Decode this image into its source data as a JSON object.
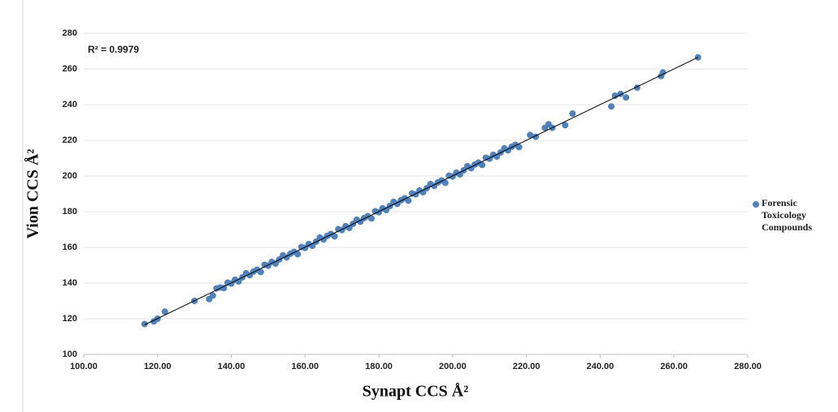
{
  "chart_data": {
    "type": "scatter",
    "annotation": "R² = 0.9979",
    "x_label": "Synapt CCS Å²",
    "y_label": "Vion CCS Å²",
    "xlim": [
      100,
      280
    ],
    "ylim": [
      100,
      280
    ],
    "xticks": [
      {
        "value": 100,
        "label": "100.00"
      },
      {
        "value": 120,
        "label": "120.00"
      },
      {
        "value": 140,
        "label": "140.00"
      },
      {
        "value": 160,
        "label": "160.00"
      },
      {
        "value": 180,
        "label": "180.00"
      },
      {
        "value": 200,
        "label": "200.00"
      },
      {
        "value": 220,
        "label": "220.00"
      },
      {
        "value": 240,
        "label": "240.00"
      },
      {
        "value": 260,
        "label": "260.00"
      },
      {
        "value": 280,
        "label": "280.00"
      }
    ],
    "yticks": [
      100,
      120,
      140,
      160,
      180,
      200,
      220,
      240,
      260,
      280
    ],
    "grid": true,
    "legend": "right",
    "series": [
      {
        "name": "Forensic Toxicology Compounds",
        "color": "#4f81bd",
        "x": [
          137,
          138,
          139,
          140,
          141,
          142,
          143,
          144,
          145,
          146,
          147,
          148,
          149,
          150,
          151,
          152,
          153,
          154,
          155,
          156,
          157,
          158,
          159,
          160,
          161,
          162,
          163,
          164,
          165,
          166,
          167,
          168,
          169,
          170,
          171,
          172,
          173,
          174,
          175,
          176,
          177,
          178,
          179,
          180,
          181,
          182,
          183,
          184,
          185,
          186,
          187,
          188,
          189,
          190,
          191,
          192,
          193,
          194,
          195,
          196,
          197,
          198,
          199,
          200,
          201,
          202,
          203,
          204,
          205,
          206,
          207,
          208,
          209,
          210,
          211,
          212,
          213,
          214,
          215,
          216,
          217,
          218,
          116.5,
          119,
          120,
          122,
          130,
          134,
          135,
          136,
          221,
          222.5,
          225,
          226,
          227,
          230.5,
          232.5,
          243,
          244,
          245.5,
          247,
          250,
          256.5,
          257,
          266.5
        ],
        "values": [
          137.5,
          137.2,
          140.2,
          139.7,
          141.9,
          140.9,
          143.2,
          145.5,
          144.4,
          146.4,
          147.5,
          146.2,
          150.2,
          149.7,
          151.9,
          150.9,
          153.2,
          155.5,
          154.4,
          156.4,
          157.5,
          156.2,
          160.2,
          159.7,
          161.9,
          160.9,
          163.2,
          165.5,
          164.4,
          166.4,
          167.5,
          166.2,
          170.2,
          169.7,
          171.9,
          170.9,
          173.2,
          175.5,
          174.4,
          176.4,
          177.5,
          176.2,
          180.2,
          179.7,
          181.9,
          180.9,
          183.2,
          185.5,
          184.4,
          186.4,
          187.5,
          186.2,
          190.2,
          189.7,
          191.9,
          190.9,
          193.2,
          195.5,
          194.4,
          196.4,
          197.5,
          196.2,
          200.2,
          199.7,
          201.9,
          200.9,
          203.2,
          205.5,
          204.4,
          206.4,
          207.5,
          206.2,
          210.2,
          209.7,
          211.9,
          210.9,
          213.2,
          215.5,
          214.4,
          216.4,
          217.5,
          216.2,
          117,
          118.5,
          120,
          124,
          130,
          131,
          133,
          137,
          223,
          222,
          227,
          229,
          227,
          228.5,
          235,
          239,
          245,
          246,
          244,
          249.5,
          256,
          258,
          266.5
        ]
      }
    ]
  }
}
